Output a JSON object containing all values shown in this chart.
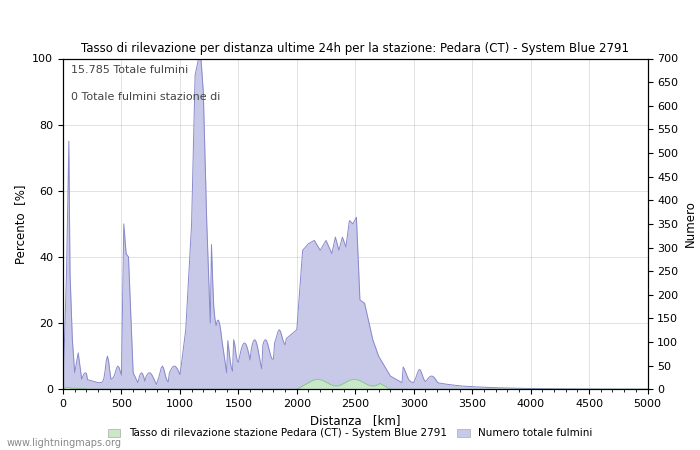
{
  "title": "Tasso di rilevazione per distanza ultime 24h per la stazione: Pedara (CT) - System Blue 2791",
  "xlabel": "Distanza   [km]",
  "ylabel_left": "Percento  [%]",
  "ylabel_right": "Numero",
  "annotation_line1": "15.785 Totale fulmini",
  "annotation_line2": "0 Totale fulmini stazione di",
  "xlim": [
    0,
    5000
  ],
  "ylim_left": [
    0,
    100
  ],
  "ylim_right": [
    0,
    700
  ],
  "xticks": [
    0,
    500,
    1000,
    1500,
    2000,
    2500,
    3000,
    3500,
    4000,
    4500,
    5000
  ],
  "yticks_left": [
    0,
    20,
    40,
    60,
    80,
    100
  ],
  "yticks_right": [
    0,
    50,
    100,
    150,
    200,
    250,
    300,
    350,
    400,
    450,
    500,
    550,
    600,
    650,
    700
  ],
  "legend_label_green": "Tasso di rilevazione stazione Pedara (CT) - System Blue 2791",
  "legend_label_blue": "Numero totale fulmini",
  "watermark": "www.lightningmaps.org",
  "fill_color_blue": "#c8c8e8",
  "fill_color_green": "#c8e8c8",
  "line_color_blue": "#8888cc",
  "line_color_green": "#88cc88",
  "background_color": "#ffffff",
  "grid_color": "#aaaaaa"
}
